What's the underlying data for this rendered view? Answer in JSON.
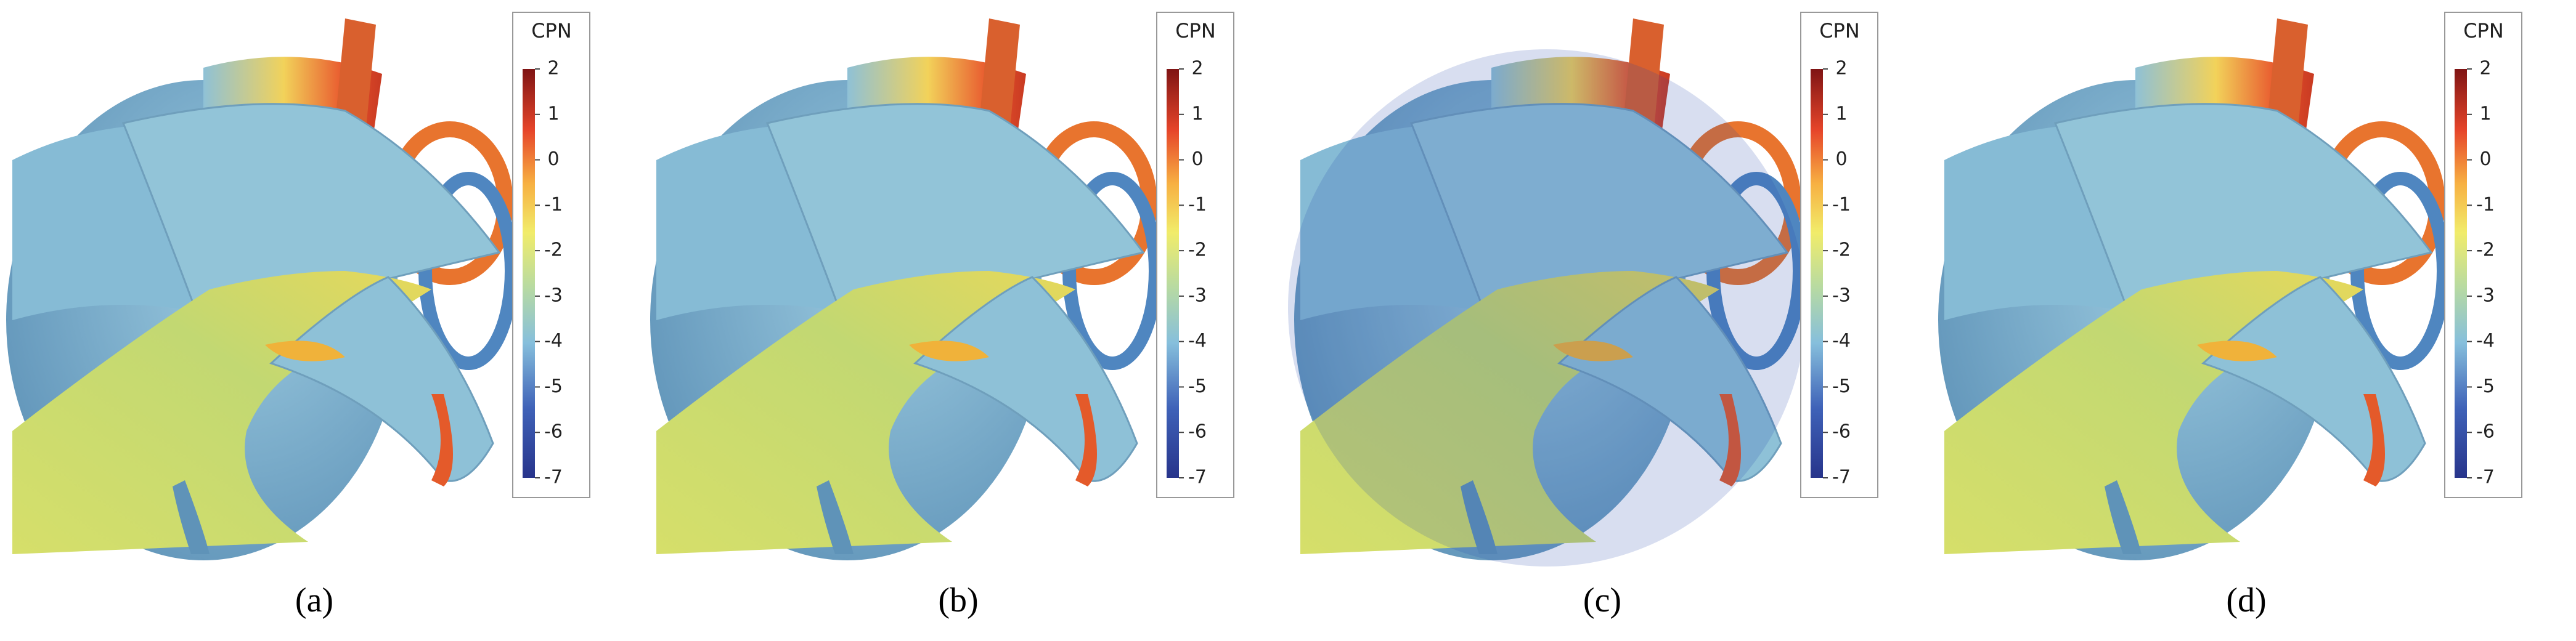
{
  "panels": [
    {
      "label": "(a)",
      "colorbar": {
        "title": "CPN",
        "ticks": [
          2,
          1,
          0,
          -1,
          -2,
          -3,
          -4,
          -5,
          -6,
          -7
        ]
      }
    },
    {
      "label": "(b)",
      "colorbar": {
        "title": "CPN",
        "ticks": [
          2,
          1,
          0,
          -1,
          -2,
          -3,
          -4,
          -5,
          -6,
          -7
        ]
      }
    },
    {
      "label": "(c)",
      "colorbar": {
        "title": "CPN",
        "ticks": [
          2,
          1,
          0,
          -1,
          -2,
          -3,
          -4,
          -5,
          -6,
          -7
        ]
      }
    },
    {
      "label": "(d)",
      "colorbar": {
        "title": "CPN",
        "ticks": [
          2,
          1,
          0,
          -1,
          -2,
          -3,
          -4,
          -5,
          -6,
          -7
        ]
      }
    }
  ]
}
